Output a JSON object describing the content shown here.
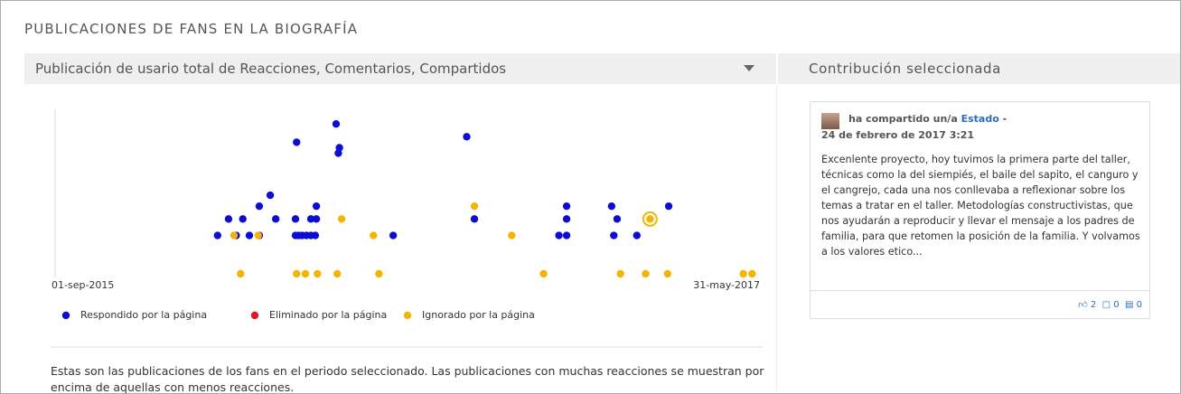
{
  "header": {
    "title": "PUBLICACIONES DE FANS EN LA BIOGRAFÍA"
  },
  "left_panel": {
    "title": "Publicación de usario total de Reacciones, Comentarios, Compartidos",
    "description": "Estas son las publicaciones de los fans en el periodo seleccionado. Las publicaciones con muchas reacciones se muestran por encima de aquellas con menos reacciones."
  },
  "chart_data": {
    "type": "scatter",
    "xlim": [
      "2015-09-01",
      "2017-05-31"
    ],
    "xlim_labels": [
      "01-sep-2015",
      "31-may-2017"
    ],
    "ylim": [
      0,
      9
    ],
    "selected_point": {
      "series": 2,
      "index": 5
    },
    "series": [
      {
        "name": "Respondido por la página",
        "color": "#0c0cd4",
        "x": [
          "2016-01-27",
          "2016-02-13",
          "2016-02-25",
          "2016-03-05",
          "2016-04-07",
          "2016-04-10",
          "2016-04-13",
          "2016-04-17",
          "2016-04-21",
          "2016-04-25",
          "2016-07-05",
          "2016-12-03",
          "2016-12-10",
          "2017-01-22",
          "2017-02-12",
          "2016-02-06",
          "2016-02-19",
          "2016-03-20",
          "2016-04-07",
          "2016-04-21",
          "2016-04-26",
          "2016-09-17",
          "2016-12-10",
          "2017-01-25",
          "2016-03-05",
          "2016-04-26",
          "2016-12-10",
          "2017-01-20",
          "2017-03-13",
          "2016-03-15",
          "2016-04-08",
          "2016-09-10",
          "2016-05-14",
          "2016-05-17",
          "2016-05-16"
        ],
        "values": [
          2.1,
          2.1,
          2.1,
          2.1,
          2.1,
          2.1,
          2.1,
          2.1,
          2.1,
          2.1,
          2.1,
          2.1,
          2.1,
          2.1,
          2.1,
          3,
          3,
          3,
          3,
          3,
          3,
          3,
          3,
          3,
          3.7,
          3.7,
          3.7,
          3.7,
          3.7,
          4.3,
          7.2,
          7.5,
          8.2,
          6.9,
          6.6
        ]
      },
      {
        "name": "Eliminado por la página",
        "color": "#e8141e",
        "x": [],
        "values": []
      },
      {
        "name": "Ignorado por la página",
        "color": "#f5b400",
        "x": [
          "2016-02-11",
          "2016-03-04",
          "2016-06-17",
          "2016-10-21",
          "2016-05-19",
          "2017-02-24",
          "2016-09-17",
          "2016-02-17",
          "2016-04-08",
          "2016-04-16",
          "2016-04-27",
          "2016-05-15",
          "2016-06-22",
          "2016-11-19",
          "2017-01-28",
          "2017-02-20",
          "2017-03-12",
          "2017-05-20",
          "2017-05-28"
        ],
        "values": [
          2.1,
          2.1,
          2.1,
          2.1,
          3,
          3,
          3.7,
          0,
          0,
          0,
          0,
          0,
          0,
          0,
          0,
          0,
          0,
          0,
          0
        ]
      }
    ]
  },
  "right_panel": {
    "title": "Contribución seleccionada",
    "post": {
      "action": "ha compartido un/a",
      "link": "Estado",
      "separator": "-",
      "date": "24 de febrero de 2017 3:21",
      "text": "Excenlente proyecto, hoy tuvimos la primera parte del taller, técnicas como la del siempiés, el baile del sapito, el canguro y el cangrejo, cada una nos conllevaba a reflexionar sobre los temas a tratar en el taller. Metodologías constructivistas, que nos ayudarán a reproducir y llevar el mensaje a los padres de familia, para que retomen la posición de la familia. Y volvamos a los valores etico...",
      "likes": 2,
      "comments": 0,
      "shares": 0
    }
  }
}
